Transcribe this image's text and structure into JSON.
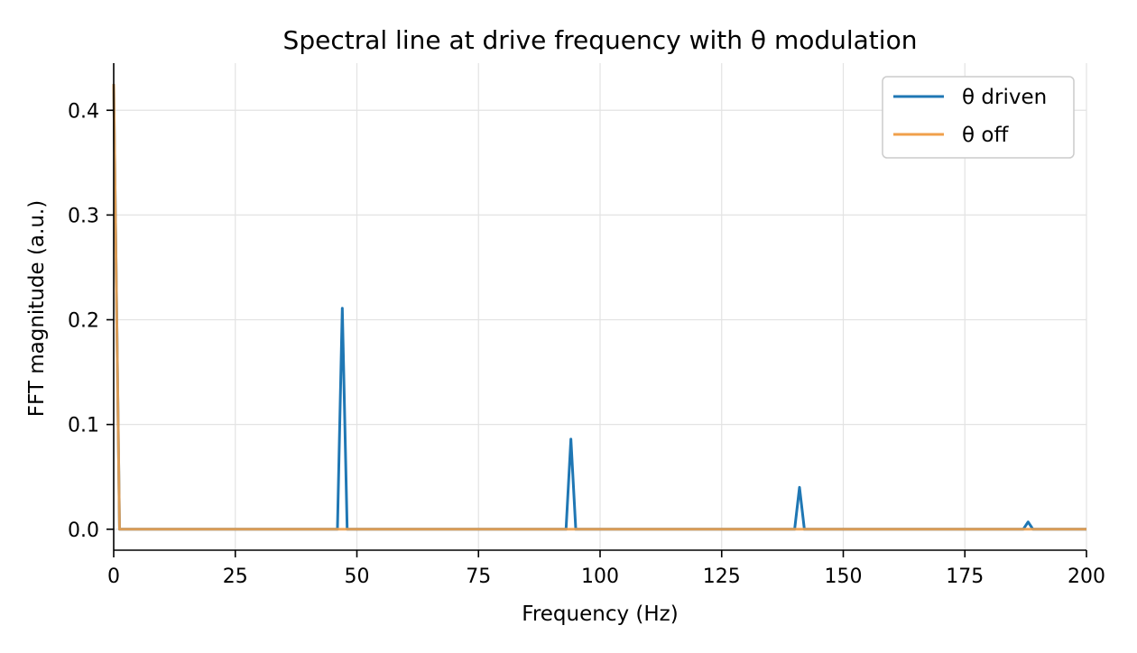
{
  "chart_data": {
    "type": "line",
    "title": "Spectral line at drive frequency with θ modulation",
    "xlabel": "Frequency (Hz)",
    "ylabel": "FFT magnitude (a.u.)",
    "xlim": [
      0,
      200
    ],
    "ylim": [
      -0.02,
      0.445
    ],
    "xticks": [
      0,
      25,
      50,
      75,
      100,
      125,
      150,
      175,
      200
    ],
    "xtick_labels": [
      "0",
      "25",
      "50",
      "75",
      "100",
      "125",
      "150",
      "175",
      "200"
    ],
    "yticks": [
      0.0,
      0.1,
      0.2,
      0.3,
      0.4
    ],
    "ytick_labels": [
      "0.0",
      "0.1",
      "0.2",
      "0.3",
      "0.4"
    ],
    "grid": true,
    "legend_position": "top-right",
    "series": [
      {
        "name": "θ driven",
        "color": "#1f77b4",
        "x": [
          0,
          1.2,
          46,
          47,
          48,
          93,
          94,
          95,
          140,
          141,
          142,
          187,
          188,
          189,
          200
        ],
        "y": [
          0.425,
          0.0,
          0.0,
          0.211,
          0.0,
          0.0,
          0.086,
          0.0,
          0.0,
          0.04,
          0.0,
          0.0,
          0.007,
          0.0,
          0.0
        ]
      },
      {
        "name": "θ off",
        "color": "#f0a04b",
        "x": [
          0,
          1.2,
          200
        ],
        "y": [
          0.425,
          0.0,
          0.0
        ]
      }
    ]
  }
}
